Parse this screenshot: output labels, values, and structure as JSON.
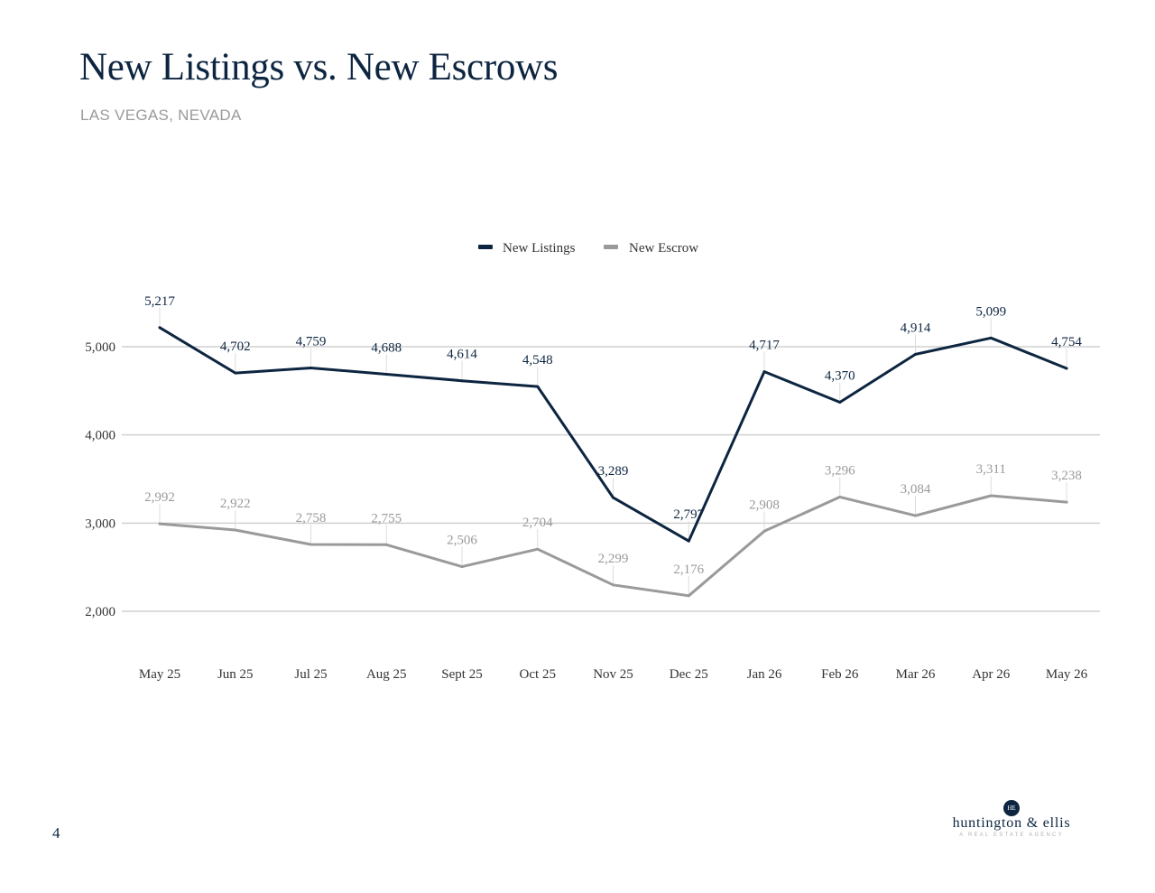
{
  "page": {
    "title": "New Listings vs. New Escrows",
    "subtitle": "LAS VEGAS, NEVADA",
    "page_number": "4"
  },
  "logo": {
    "mark": "HE",
    "name": "huntington & ellis",
    "tagline": "A REAL ESTATE AGENCY"
  },
  "colors": {
    "listings": "#0d2540",
    "escrow": "#9a9a9a",
    "grid": "#d0d0d0"
  },
  "chart_data": {
    "type": "line",
    "categories": [
      "May 25",
      "Jun 25",
      "Jul 25",
      "Aug 25",
      "Sept 25",
      "Oct 25",
      "Nov 25",
      "Dec 25",
      "Jan 26",
      "Feb 26",
      "Mar 26",
      "Apr 26",
      "May 26"
    ],
    "series": [
      {
        "name": "New Listings",
        "values": [
          5217,
          4702,
          4759,
          4688,
          4614,
          4548,
          3289,
          2797,
          4717,
          4370,
          4914,
          5099,
          4754
        ],
        "labels": [
          "5,217",
          "4,702",
          "4,759",
          "4,688",
          "4,614",
          "4,548",
          "3,289",
          "2,797",
          "4,717",
          "4,370",
          "4,914",
          "5,099",
          "4,754"
        ]
      },
      {
        "name": "New Escrow",
        "values": [
          2992,
          2922,
          2758,
          2755,
          2506,
          2704,
          2299,
          2176,
          2908,
          3296,
          3084,
          3311,
          3238
        ],
        "labels": [
          "2,992",
          "2,922",
          "2,758",
          "2,755",
          "2,506",
          "2,704",
          "2,299",
          "2,176",
          "2,908",
          "3,296",
          "3,084",
          "3,311",
          "3,238"
        ]
      }
    ],
    "yticks": [
      2000,
      3000,
      4000,
      5000
    ],
    "ytick_labels": [
      "2,000",
      "3,000",
      "4,000",
      "5,000"
    ],
    "ylim": [
      1500,
      5700
    ],
    "grid": true,
    "legend": "top-center"
  }
}
